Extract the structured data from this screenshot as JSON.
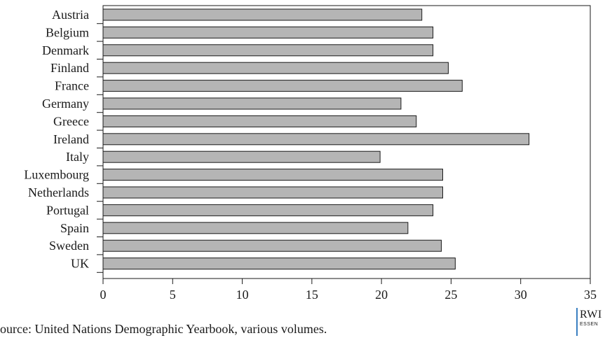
{
  "chart_data": {
    "type": "bar",
    "orientation": "horizontal",
    "categories": [
      "Austria",
      "Belgium",
      "Denmark",
      "Finland",
      "France",
      "Germany",
      "Greece",
      "Ireland",
      "Italy",
      "Luxembourg",
      "Netherlands",
      "Portugal",
      "Spain",
      "Sweden",
      "UK"
    ],
    "values": [
      22.9,
      23.7,
      23.7,
      24.8,
      25.8,
      21.4,
      22.5,
      30.6,
      19.9,
      24.4,
      24.4,
      23.7,
      21.9,
      24.3,
      25.3
    ],
    "x_ticks": [
      "0",
      "5",
      "10",
      "15",
      "20",
      "25",
      "30",
      "35"
    ],
    "xlim": [
      0,
      35
    ],
    "bar_color": "#b5b5b5",
    "grid": false
  },
  "source": "Source: United Nations Demographic Yearbook, various volumes.",
  "logo": {
    "main": "RWI",
    "sub": "ESSEN",
    "accent_color": "#3a7fc1"
  }
}
